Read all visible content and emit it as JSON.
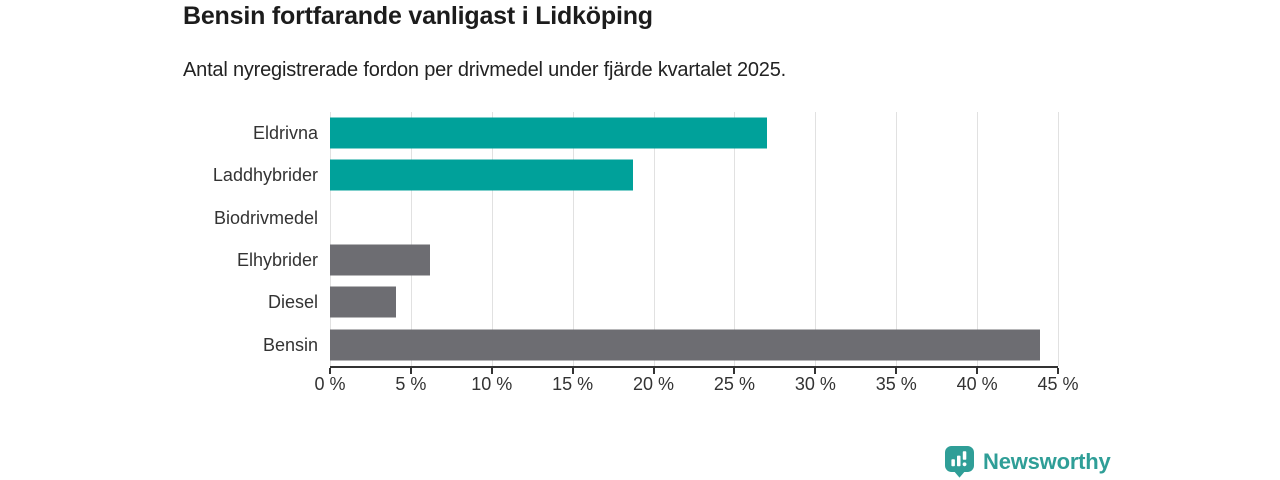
{
  "colors": {
    "teal": "#00a19a",
    "gray": "#6d6d72",
    "grid": "#e1e1e1",
    "axis": "#333333",
    "tick_text": "#333333",
    "title_text": "#1c1c1c",
    "brand_teal": "#2f9e97"
  },
  "chart_data": {
    "type": "bar",
    "orientation": "horizontal",
    "title": "Bensin fortfarande vanligast i Lidköping",
    "subtitle": "Antal nyregistrerade fordon per drivmedel under fjärde kvartalet 2025.",
    "unit": "%",
    "categories": [
      "Eldrivna",
      "Laddhybrider",
      "Biodrivmedel",
      "Elhybrider",
      "Diesel",
      "Bensin"
    ],
    "values": [
      27,
      18.7,
      0,
      6.2,
      4.1,
      43.9
    ],
    "bar_colors": [
      "teal",
      "teal",
      "teal",
      "gray",
      "gray",
      "gray"
    ],
    "xlabel": "",
    "ylabel": "",
    "xlim": [
      0,
      45
    ],
    "x_ticks": [
      0,
      5,
      10,
      15,
      20,
      25,
      30,
      35,
      40,
      45
    ],
    "x_tick_labels": [
      "0 %",
      "5 %",
      "10 %",
      "15 %",
      "20 %",
      "25 %",
      "30 %",
      "35 %",
      "40 %",
      "45 %"
    ],
    "grid": true,
    "legend": false
  },
  "footer": {
    "brand": "Newsworthy",
    "logo_icon": "newsworthy-pin-bar-chart-icon"
  }
}
